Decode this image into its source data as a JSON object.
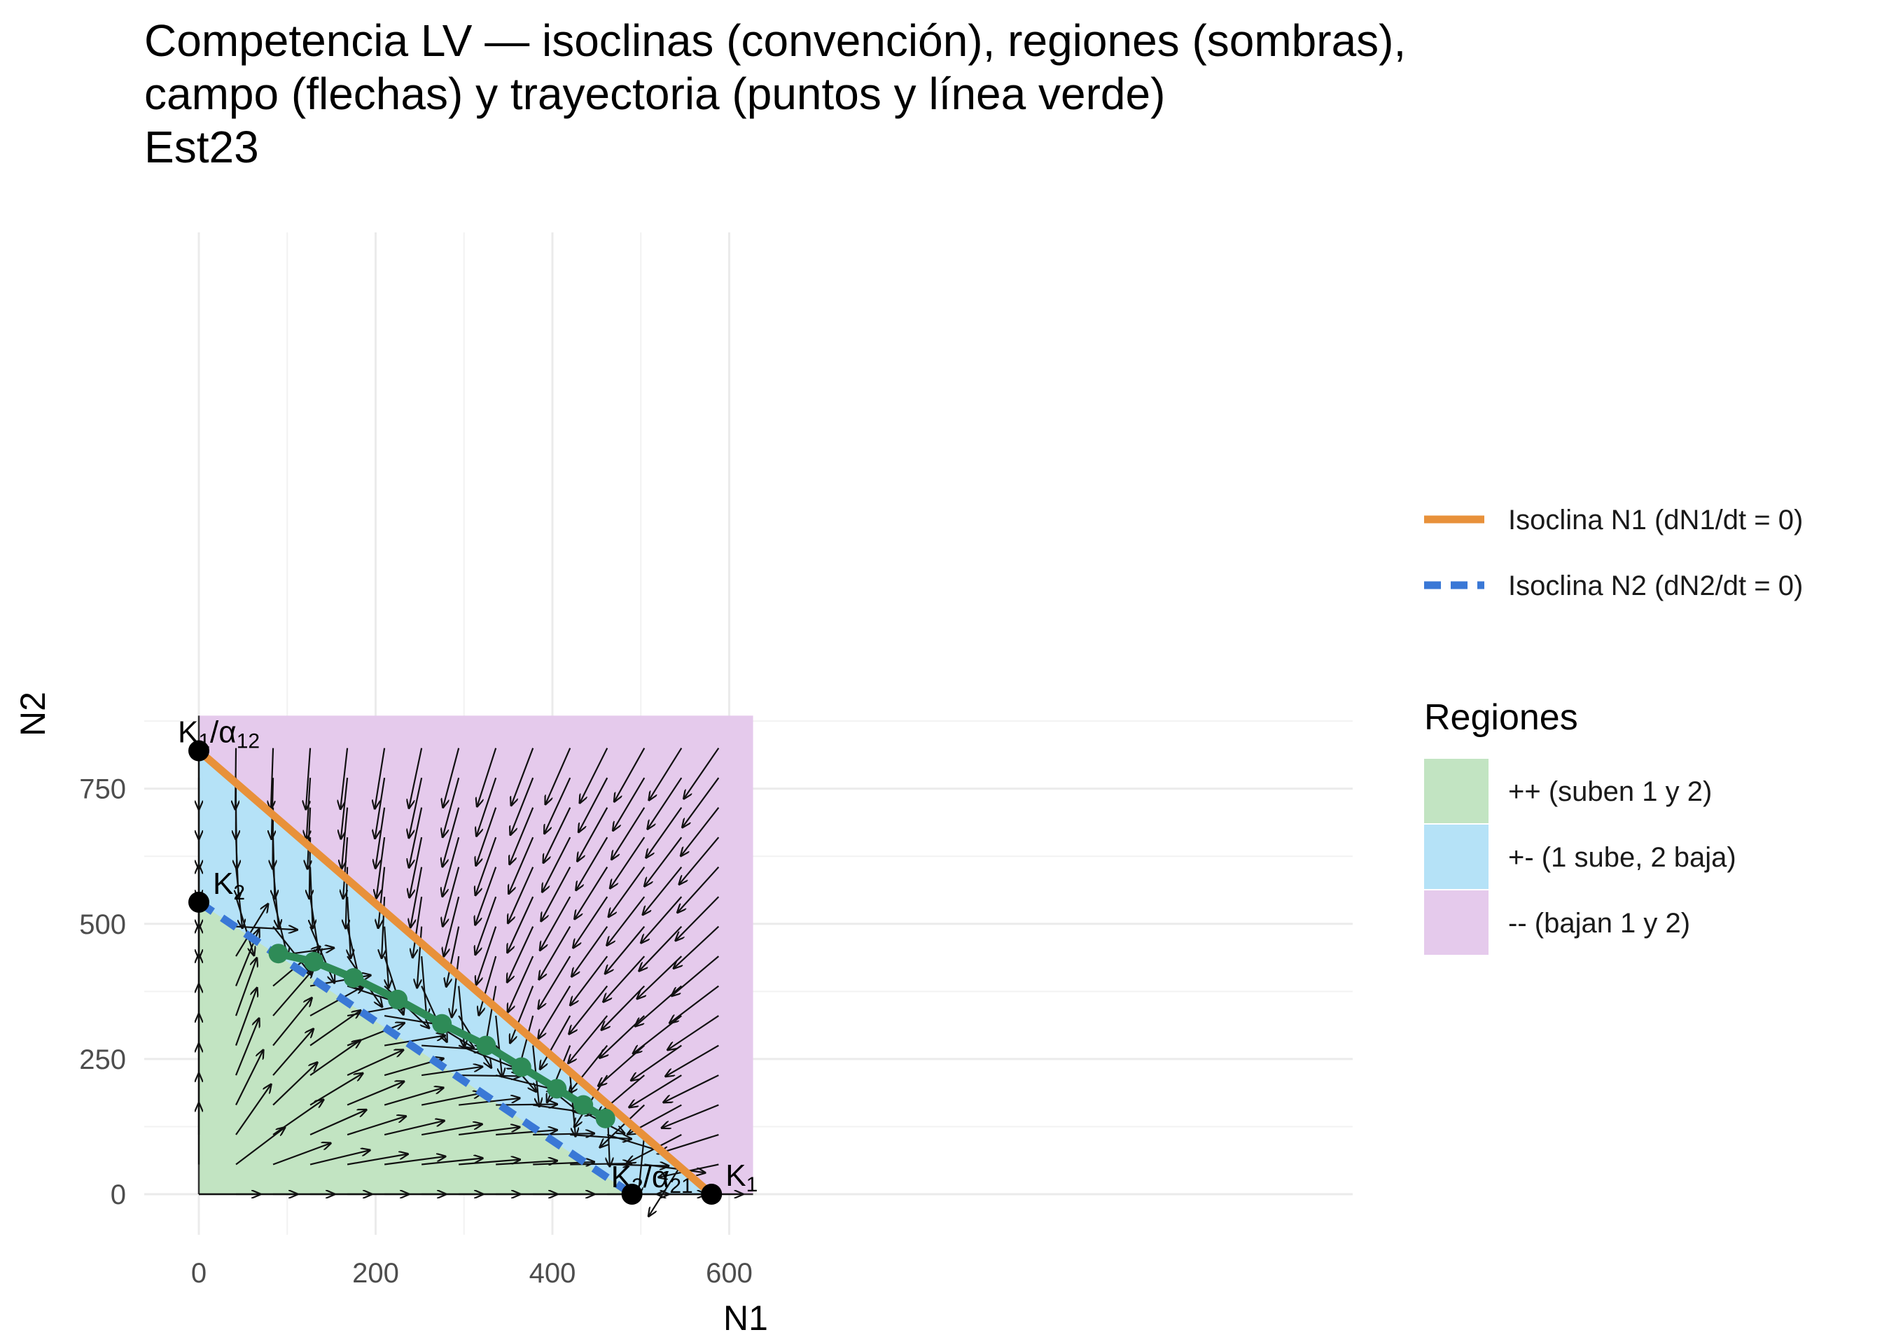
{
  "chart_data": {
    "type": "line",
    "title_lines": [
      "Competencia LV — isoclinas (convención), regiones (sombras),",
      " campo (flechas) y trayectoria (puntos y línea verde)",
      " Est23"
    ],
    "xlabel": "N1",
    "ylabel": "N2",
    "xlim": [
      -15,
      650
    ],
    "ylim": [
      -75,
      905
    ],
    "x_ticks": [
      0,
      200,
      400,
      600
    ],
    "y_ticks": [
      0,
      250,
      500,
      750
    ],
    "grid": true,
    "params": {
      "K1": 580,
      "K2": 540,
      "K1_over_a12": 820,
      "K2_over_a21": 490
    },
    "plot_extent": {
      "n1_max": 627,
      "n2_max": 885
    },
    "isoclines": [
      {
        "name": "Isoclina N1 (dN1/dt = 0)",
        "color": "#E8913A",
        "dash": "solid",
        "points": [
          [
            0,
            820
          ],
          [
            580,
            0
          ]
        ]
      },
      {
        "name": "Isoclina N2 (dN2/dt = 0)",
        "color": "#3A78D6",
        "dash": "dashed",
        "points": [
          [
            0,
            540
          ],
          [
            490,
            0
          ]
        ]
      }
    ],
    "regions": {
      "title": "Regiones",
      "items": [
        {
          "name": "++ (suben 1 y 2)",
          "color": "#C2E4C2"
        },
        {
          "name": "+- (1 sube, 2 baja)",
          "color": "#B5E2F7"
        },
        {
          "name": "-- (bajan 1 y 2)",
          "color": "#E5CAEC"
        }
      ]
    },
    "trajectory": {
      "color": "#2E8B57",
      "points": [
        [
          90,
          445
        ],
        [
          130,
          430
        ],
        [
          175,
          400
        ],
        [
          225,
          360
        ],
        [
          275,
          315
        ],
        [
          325,
          275
        ],
        [
          365,
          235
        ],
        [
          405,
          195
        ],
        [
          435,
          165
        ],
        [
          460,
          140
        ]
      ]
    },
    "points": [
      {
        "label": "K1/α12",
        "x": 0,
        "y": 820
      },
      {
        "label": "K2",
        "x": 0,
        "y": 540
      },
      {
        "label": "K2/α21",
        "x": 490,
        "y": 0
      },
      {
        "label": "K1",
        "x": 580,
        "y": 0
      }
    ],
    "vector_field": {
      "n1_step": 42,
      "n2_step": 55,
      "n1_start": 0,
      "n2_start": 0,
      "r1": 1,
      "r2": 1
    }
  }
}
